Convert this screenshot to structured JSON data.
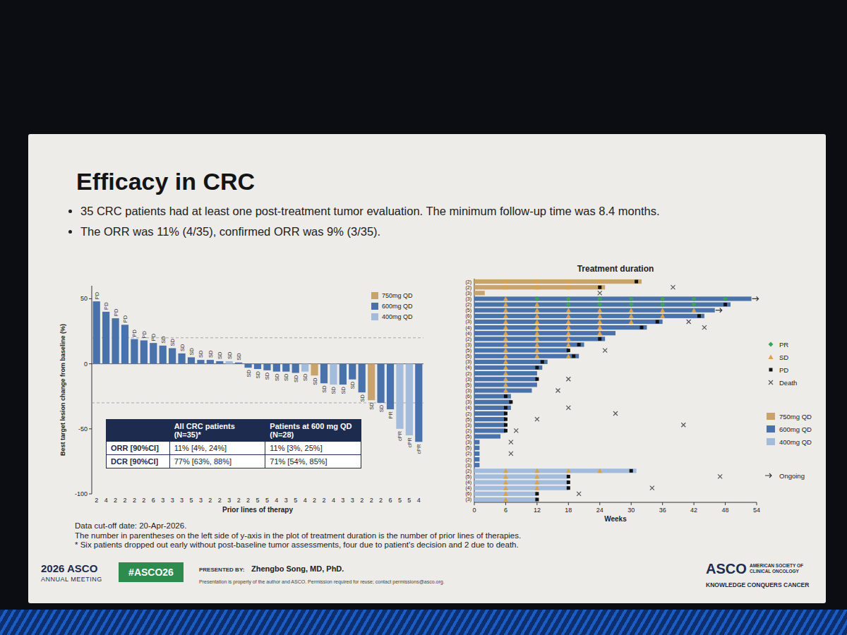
{
  "slide": {
    "title": "Efficacy in CRC",
    "bullets": [
      "35 CRC patients had at least one post-treatment tumor evaluation. The minimum follow-up time was 8.4 months.",
      "The ORR was 11% (4/35), confirmed ORR was 9% (3/35)."
    ],
    "footnotes": [
      "Data cut-off date: 20-Apr-2026.",
      "The number in parentheses on the left side of y-axis in the plot of treatment duration is the number of prior lines of therapies.",
      "* Six patients dropped out early without post-baseline tumor assessments, four due to patient's decision and 2 due to death."
    ],
    "footer": {
      "meeting": "2026 ASCO",
      "meeting_sub": "ANNUAL MEETING",
      "hashtag": "#ASCO26",
      "presented_by": "PRESENTED BY:",
      "presenter": "Zhengbo Song, MD, PhD.",
      "disclaimer": "Presentation is property of the author and ASCO. Permission required for reuse; contact permissions@asco.org.",
      "logo": "ASCO",
      "logo_sub": "AMERICAN SOCIETY OF CLINICAL ONCOLOGY",
      "tagline": "KNOWLEDGE CONQUERS CANCER"
    }
  },
  "table": {
    "columns": [
      "All CRC patients (N=35)*",
      "Patients at 600 mg QD (N=28)"
    ],
    "rows": [
      {
        "label": "ORR [90%CI]",
        "cells": [
          "11% [4%, 24%]",
          "11% [3%, 25%]"
        ]
      },
      {
        "label": "DCR [90%CI]",
        "cells": [
          "77% [63%, 88%]",
          "71% [54%, 85%]"
        ]
      }
    ]
  },
  "chart_data": [
    {
      "type": "bar",
      "x_label": "Prior lines of therapy",
      "y_label": "Best target lesion change from baseline (%)",
      "categories": [
        "2",
        "4",
        "2",
        "2",
        "2",
        "2",
        "6",
        "3",
        "3",
        "3",
        "5",
        "3",
        "2",
        "2",
        "3",
        "2",
        "2",
        "5",
        "5",
        "4",
        "3",
        "5",
        "4",
        "2",
        "2",
        "4",
        "3",
        "3",
        "2",
        "2",
        "2",
        "6",
        "5",
        "5",
        "4"
      ],
      "values": [
        48,
        40,
        35,
        30,
        19,
        18,
        16,
        14,
        12,
        8,
        5,
        3,
        3,
        2,
        2,
        1,
        -3,
        -4,
        -5,
        -6,
        -6,
        -7,
        -6,
        -9,
        -15,
        -16,
        -16,
        -12,
        -22,
        -28,
        -30,
        -35,
        -50,
        -55,
        -60
      ],
      "bar_labels": [
        "PD",
        "PD",
        "PD",
        "PD",
        "PD",
        "PD",
        "PD",
        "SD",
        "SD",
        "SD",
        "SD",
        "SD",
        "SD",
        "SD",
        "SD",
        "SD",
        "SD",
        "SD",
        "SD",
        "SD",
        "SD",
        "SD",
        "SD",
        "SD",
        "SD",
        "SD",
        "SD",
        "SD",
        "SD",
        "SD",
        "SD",
        "PR",
        "cPR",
        "cPR",
        "cPR"
      ],
      "colors": [
        "#4a72aa",
        "#4a72aa",
        "#4a72aa",
        "#4a72aa",
        "#4a72aa",
        "#4a72aa",
        "#4a72aa",
        "#4a72aa",
        "#4a72aa",
        "#4a72aa",
        "#4a72aa",
        "#4a72aa",
        "#4a72aa",
        "#4a72aa",
        "#a3bcdc",
        "#4a72aa",
        "#4a72aa",
        "#4a72aa",
        "#4a72aa",
        "#4a72aa",
        "#4a72aa",
        "#4a72aa",
        "#a3bcdc",
        "#c8a46c",
        "#4a72aa",
        "#a3bcdc",
        "#4a72aa",
        "#4a72aa",
        "#4a72aa",
        "#c8a46c",
        "#4a72aa",
        "#4a72aa",
        "#a3bcdc",
        "#a3bcdc",
        "#4a72aa"
      ],
      "reference_lines": [
        20,
        -30
      ],
      "ylim": [
        -100,
        60
      ],
      "yticks": [
        -100,
        -50,
        0,
        50
      ],
      "legend": "upper right",
      "legend_entries": [
        {
          "name": "750mg QD",
          "color": "#c8a46c"
        },
        {
          "name": "600mg QD",
          "color": "#4a72aa"
        },
        {
          "name": "400mg QD",
          "color": "#a3bcdc"
        }
      ]
    },
    {
      "type": "swimmer",
      "orientation": "horizontal",
      "title": "Treatment duration",
      "x_label": "Weeks",
      "xlim": [
        0,
        54
      ],
      "xticks": [
        0,
        6,
        12,
        18,
        24,
        30,
        36,
        42,
        48,
        54
      ],
      "categories": [
        "(2)",
        "(2)",
        "(3)",
        "(3)",
        "(2)",
        "(5)",
        "(6)",
        "(3)",
        "(4)",
        "(4)",
        "(2)",
        "(3)",
        "(5)",
        "(5)",
        "(3)",
        "(4)",
        "(2)",
        "(3)",
        "(5)",
        "(3)",
        "(6)",
        "(3)",
        "(4)",
        "(2)",
        "(5)",
        "(3)",
        "(2)",
        "(5)",
        "(3)",
        "(5)",
        "(2)",
        "(2)",
        "(3)",
        "(2)",
        "(5)",
        "(4)",
        "(4)",
        "(6)",
        "(3)"
      ],
      "values": [
        32,
        25,
        2,
        53,
        49,
        46,
        44,
        36,
        33,
        27,
        25,
        21,
        18,
        20,
        14,
        13,
        12,
        12,
        12,
        11,
        7,
        7,
        7,
        6,
        6,
        6,
        6,
        5,
        1,
        1,
        1,
        1,
        1,
        31,
        18,
        18,
        18,
        12,
        12
      ],
      "colors": [
        "#c8a46c",
        "#c8a46c",
        "#c8a46c",
        "#4a72aa",
        "#4a72aa",
        "#4a72aa",
        "#4a72aa",
        "#4a72aa",
        "#4a72aa",
        "#4a72aa",
        "#4a72aa",
        "#4a72aa",
        "#4a72aa",
        "#4a72aa",
        "#4a72aa",
        "#4a72aa",
        "#4a72aa",
        "#4a72aa",
        "#4a72aa",
        "#4a72aa",
        "#4a72aa",
        "#4a72aa",
        "#4a72aa",
        "#4a72aa",
        "#4a72aa",
        "#4a72aa",
        "#4a72aa",
        "#4a72aa",
        "#4a72aa",
        "#4a72aa",
        "#4a72aa",
        "#4a72aa",
        "#4a72aa",
        "#a3bcdc",
        "#a3bcdc",
        "#a3bcdc",
        "#a3bcdc",
        "#a3bcdc",
        "#a3bcdc"
      ],
      "sd": [
        [
          6,
          12,
          18,
          24
        ],
        [
          6,
          12,
          18
        ],
        [],
        [
          6
        ],
        [
          6,
          12
        ],
        [
          6,
          12,
          18,
          24,
          30,
          36,
          42
        ],
        [
          6,
          12,
          18,
          24,
          30,
          36
        ],
        [
          6,
          12,
          18,
          24,
          30
        ],
        [
          6,
          12,
          18,
          24
        ],
        [
          6,
          12,
          18,
          24
        ],
        [
          6,
          12,
          18
        ],
        [
          6,
          12,
          18
        ],
        [
          6,
          12
        ],
        [
          6,
          12,
          18
        ],
        [
          6
        ],
        [
          6
        ],
        [
          6
        ],
        [
          6
        ],
        [
          6
        ],
        [
          6
        ],
        [],
        [],
        [],
        [],
        [],
        [],
        [],
        [],
        [],
        [],
        [],
        [],
        [],
        [
          6,
          12,
          18,
          24
        ],
        [
          6,
          12
        ],
        [
          6,
          12
        ],
        [
          6,
          12
        ],
        [
          6
        ],
        [
          6
        ]
      ],
      "pr": [
        [],
        [],
        [],
        [
          12,
          18,
          24,
          30,
          36,
          42,
          48
        ],
        [
          18,
          24,
          30,
          36,
          42
        ],
        [],
        [],
        [],
        [],
        [],
        [],
        [],
        [],
        [],
        [],
        [],
        [],
        [],
        [],
        [],
        [],
        [],
        [],
        [],
        [],
        [],
        [],
        [],
        [],
        [],
        [],
        [],
        [],
        [],
        [],
        [],
        [],
        [],
        []
      ],
      "pd": [
        31,
        24,
        null,
        null,
        48,
        null,
        43,
        35,
        32,
        null,
        24,
        20,
        18,
        19,
        13,
        12,
        null,
        12,
        null,
        null,
        6,
        7,
        6,
        6,
        6,
        6,
        6,
        null,
        null,
        null,
        null,
        null,
        null,
        30,
        18,
        18,
        18,
        12,
        12
      ],
      "death": [
        null,
        38,
        24,
        null,
        null,
        null,
        null,
        41,
        44,
        null,
        null,
        null,
        25,
        null,
        null,
        null,
        null,
        18,
        null,
        16,
        null,
        null,
        18,
        27,
        12,
        40,
        8,
        null,
        7,
        null,
        7,
        null,
        null,
        null,
        47,
        null,
        34,
        20,
        null
      ],
      "ongoing": [
        false,
        false,
        false,
        true,
        false,
        true,
        false,
        false,
        false,
        false,
        false,
        false,
        false,
        false,
        false,
        false,
        false,
        false,
        false,
        false,
        false,
        false,
        false,
        false,
        false,
        false,
        false,
        false,
        false,
        false,
        false,
        false,
        false,
        false,
        false,
        false,
        false,
        false,
        false
      ],
      "legend": "right",
      "legend_entries": [
        {
          "name": "PR",
          "color": "#3aa35a",
          "marker": "diamond"
        },
        {
          "name": "SD",
          "color": "#d9a24c",
          "marker": "triangle"
        },
        {
          "name": "PD",
          "color": "#111111",
          "marker": "square"
        },
        {
          "name": "Death",
          "color": "#555555",
          "marker": "x"
        },
        {
          "name": "750mg QD",
          "color": "#c8a46c",
          "marker": "bar"
        },
        {
          "name": "600mg QD",
          "color": "#4a72aa",
          "marker": "bar"
        },
        {
          "name": "400mg QD",
          "color": "#a3bcdc",
          "marker": "bar"
        },
        {
          "name": "Ongoing",
          "color": "#333333",
          "marker": "arrow"
        }
      ]
    }
  ]
}
